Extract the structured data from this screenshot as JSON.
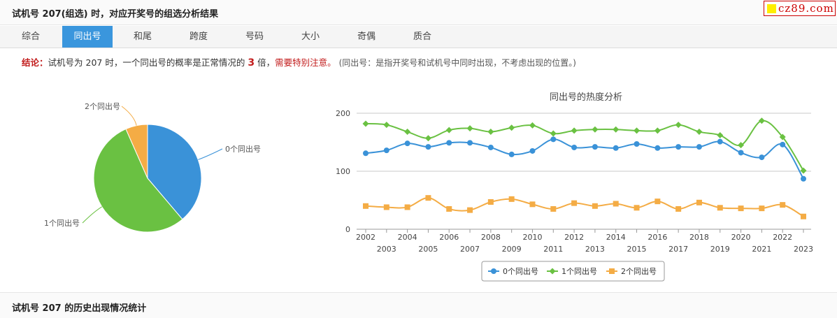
{
  "header": {
    "title": "试机号 207(组选) 时，对应开奖号的组选分析结果",
    "logo_text": "cz89.com"
  },
  "tabs": [
    {
      "label": "综合",
      "active": false
    },
    {
      "label": "同出号",
      "active": true
    },
    {
      "label": "和尾",
      "active": false
    },
    {
      "label": "跨度",
      "active": false
    },
    {
      "label": "号码",
      "active": false
    },
    {
      "label": "大小",
      "active": false
    },
    {
      "label": "奇偶",
      "active": false
    },
    {
      "label": "质合",
      "active": false
    }
  ],
  "conclusion": {
    "label": "结论",
    "text1": "试机号为 207 时，一个同出号的概率是正常情况的",
    "multiple": "3",
    "text2": "倍，",
    "warning": "需要特别注意。",
    "note": "(同出号：是指开奖号和试机号中同时出现，不考虑出现的位置。)"
  },
  "colors": {
    "c0": "#3a92d8",
    "c1": "#6ac142",
    "c2": "#f4ac45",
    "accent": "#3a96dd",
    "alert": "#c21d1d"
  },
  "chart_data": [
    {
      "type": "pie",
      "labels": [
        "0个同出号",
        "1个同出号",
        "2个同出号"
      ],
      "values": [
        38.8,
        54.6,
        6.6
      ]
    },
    {
      "type": "line",
      "title": "同出号的热度分析",
      "x": [
        2002,
        2003,
        2004,
        2005,
        2006,
        2007,
        2008,
        2009,
        2010,
        2011,
        2012,
        2013,
        2014,
        2015,
        2016,
        2017,
        2018,
        2019,
        2020,
        2021,
        2022,
        2023
      ],
      "ylim": [
        0,
        200
      ],
      "yticks": [
        0,
        100,
        200
      ],
      "legend_position": "bottom",
      "series": [
        {
          "name": "0个同出号",
          "marker": "circle",
          "values": [
            131,
            136,
            148,
            142,
            149,
            149,
            141,
            129,
            135,
            155,
            141,
            142,
            140,
            147,
            140,
            142,
            142,
            151,
            132,
            124,
            146,
            87
          ]
        },
        {
          "name": "1个同出号",
          "marker": "diamond",
          "values": [
            182,
            180,
            168,
            157,
            171,
            174,
            168,
            175,
            179,
            165,
            170,
            172,
            172,
            170,
            170,
            180,
            168,
            162,
            145,
            187,
            159,
            101
          ]
        },
        {
          "name": "2个同出号",
          "marker": "square",
          "values": [
            40,
            38,
            38,
            54,
            35,
            33,
            47,
            52,
            43,
            35,
            45,
            40,
            44,
            37,
            48,
            35,
            46,
            37,
            36,
            36,
            42,
            22
          ]
        }
      ]
    }
  ],
  "footer": {
    "title": "试机号 207 的历史出现情况统计"
  }
}
